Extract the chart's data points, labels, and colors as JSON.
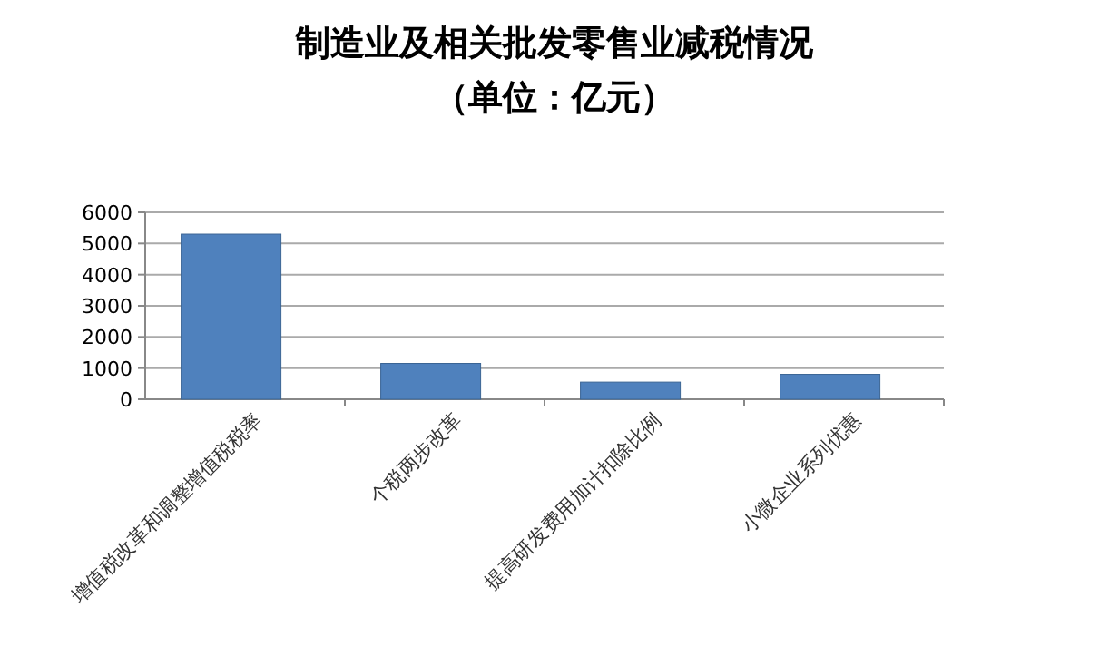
{
  "chart_data": {
    "type": "bar",
    "title": "制造业及相关批发零售业减税情况",
    "subtitle": "（单位：亿元）",
    "categories": [
      "增值税改革和调整增值税税率",
      "个税两步改革",
      "提高研发费用加计扣除比例",
      "小微企业系列优惠"
    ],
    "values": [
      5300,
      1150,
      550,
      800
    ],
    "color": "#4f81bd",
    "ylim": [
      0,
      6000
    ],
    "yticks": [
      0,
      1000,
      2000,
      3000,
      4000,
      5000,
      6000
    ],
    "grid": "y"
  }
}
